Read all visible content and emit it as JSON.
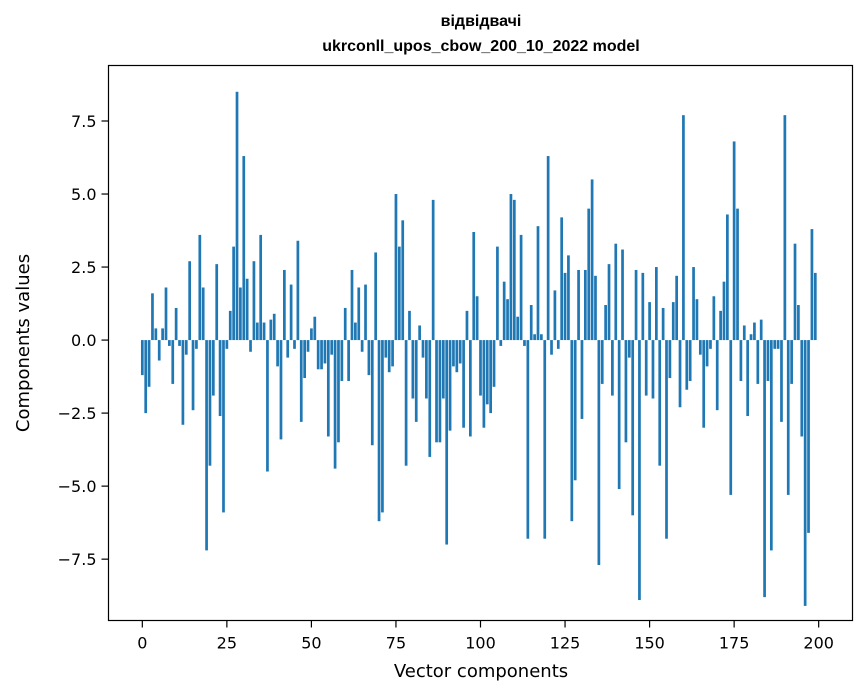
{
  "chart_data": {
    "type": "bar",
    "title_line1": "відвідвачі",
    "title_line2": "ukrconll_upos_cbow_200_10_2022 model",
    "xlabel": "Vector components",
    "ylabel": "Components values",
    "xlim": [
      -10,
      210
    ],
    "ylim": [
      -9.6,
      9.4
    ],
    "xticks": [
      0,
      25,
      50,
      75,
      100,
      125,
      150,
      175,
      200
    ],
    "xtick_labels": [
      "0",
      "25",
      "50",
      "75",
      "100",
      "125",
      "150",
      "175",
      "200"
    ],
    "yticks": [
      7.5,
      5.0,
      2.5,
      0.0,
      -2.5,
      -5.0,
      -7.5
    ],
    "ytick_labels": [
      "7.5",
      "5.0",
      "2.5",
      "0.0",
      "−2.5",
      "−5.0",
      "−7.5"
    ],
    "bar_color": "#1f77b4",
    "bar_width": 0.8,
    "values": [
      -1.2,
      -2.5,
      -1.6,
      1.6,
      0.4,
      -0.7,
      0.4,
      1.8,
      -0.2,
      -1.5,
      1.1,
      -0.2,
      -2.9,
      -0.5,
      2.7,
      -2.4,
      -0.3,
      3.6,
      1.8,
      -7.2,
      -4.3,
      -1.9,
      2.6,
      -2.6,
      -5.9,
      -0.3,
      1.0,
      3.2,
      8.5,
      1.8,
      6.3,
      2.1,
      -0.4,
      2.7,
      0.6,
      3.6,
      0.6,
      -4.5,
      0.7,
      0.9,
      -0.9,
      -3.4,
      2.4,
      -0.6,
      1.9,
      -0.3,
      3.4,
      -2.8,
      -1.3,
      -0.4,
      0.4,
      0.8,
      -1.0,
      -1.0,
      -0.8,
      -3.3,
      -0.5,
      -4.4,
      -3.5,
      -1.4,
      1.1,
      -1.4,
      2.4,
      0.6,
      1.8,
      -0.4,
      1.9,
      -1.2,
      -3.6,
      3.0,
      -6.2,
      -5.9,
      -0.6,
      -1.1,
      -0.9,
      5.0,
      3.2,
      4.1,
      -4.3,
      1.0,
      -2.0,
      -2.8,
      0.5,
      -0.6,
      -2.0,
      -4.0,
      4.8,
      -3.5,
      -3.5,
      -2.0,
      -7.0,
      -3.1,
      -0.9,
      -1.1,
      -0.8,
      -3.0,
      1.0,
      -3.3,
      3.7,
      1.5,
      -1.9,
      -3.0,
      -2.2,
      -2.5,
      -1.6,
      3.2,
      -0.2,
      2.0,
      1.4,
      5.0,
      4.8,
      0.8,
      3.6,
      -0.2,
      -6.8,
      1.2,
      0.2,
      3.9,
      0.2,
      -6.8,
      6.3,
      -0.5,
      1.7,
      -0.3,
      4.2,
      2.3,
      2.9,
      -6.2,
      -4.8,
      2.4,
      -2.7,
      2.4,
      4.5,
      5.5,
      2.2,
      -7.7,
      -1.5,
      1.2,
      2.6,
      -1.9,
      3.3,
      -5.1,
      3.1,
      -3.5,
      -0.6,
      -6.0,
      2.4,
      -8.9,
      2.3,
      -1.9,
      1.3,
      -2.0,
      2.5,
      -4.3,
      1.1,
      -6.8,
      -1.3,
      1.3,
      2.2,
      -2.3,
      7.7,
      -1.7,
      -1.4,
      2.5,
      1.4,
      -0.5,
      -3.0,
      -0.9,
      -0.3,
      1.5,
      -2.4,
      1.0,
      2.0,
      4.3,
      -5.3,
      6.8,
      4.5,
      -1.4,
      0.5,
      -2.6,
      0.2,
      0.6,
      -1.5,
      0.7,
      -8.8,
      -1.4,
      -7.2,
      -0.3,
      -0.3,
      -2.8,
      7.7,
      -5.3,
      -1.5,
      3.3,
      1.2,
      -3.3,
      -9.1,
      -6.6,
      3.8,
      2.3
    ]
  }
}
